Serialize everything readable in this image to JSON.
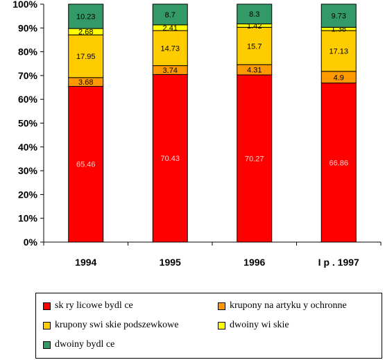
{
  "chart_data": {
    "type": "bar",
    "stacked": true,
    "categories": [
      "1994",
      "1995",
      "1996",
      "I p   . 1997"
    ],
    "ylim": [
      0,
      100
    ],
    "yticks": [
      "0%",
      "10%",
      "20%",
      "30%",
      "40%",
      "50%",
      "60%",
      "70%",
      "80%",
      "90%",
      "100%"
    ],
    "series": [
      {
        "name": "sk  ry licowe bydl  ce",
        "color": "#ff0000",
        "values": [
          65.46,
          70.43,
          70.27,
          66.86
        ],
        "labels": [
          "65.46",
          "70.43",
          "70.27",
          "66.86"
        ]
      },
      {
        "name": "krupony na artyku  y ochronne",
        "color": "#ff9900",
        "values": [
          3.68,
          3.74,
          4.31,
          4.9
        ],
        "labels": [
          "3.68",
          "3.74",
          "4.31",
          "4.9"
        ]
      },
      {
        "name": "krupony swi  skie podszewkowe",
        "color": "#ffcc00",
        "values": [
          17.95,
          14.73,
          15.7,
          17.13
        ],
        "labels": [
          "17.95",
          "14.73",
          "15.7",
          "17.13"
        ]
      },
      {
        "name": "dwoiny   wi  skie",
        "color": "#ffff00",
        "values": [
          2.68,
          2.41,
          1.42,
          1.38
        ],
        "labels": [
          "2.68",
          "2.41",
          "1.42",
          "1.38"
        ]
      },
      {
        "name": "dwoiny bydl  ce",
        "color": "#339966",
        "values": [
          10.23,
          8.7,
          8.3,
          9.73
        ],
        "labels": [
          "10.23",
          "8.7",
          "8.3",
          "9.73"
        ]
      }
    ],
    "grid": false,
    "legend_position": "bottom"
  }
}
